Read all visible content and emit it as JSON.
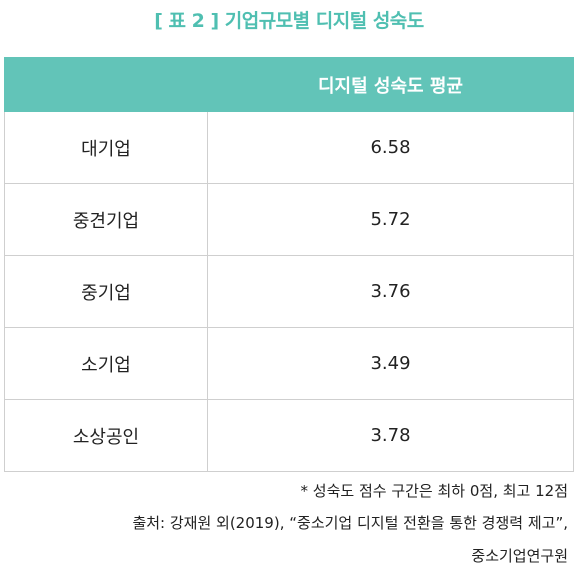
{
  "title": "[ 표 2 ] 기업규모별 디지털 성숙도",
  "table": {
    "header": [
      "디지털 성숙도 평균"
    ],
    "rows": [
      [
        "대기업",
        6.58
      ],
      [
        "중견기업",
        5.72
      ],
      [
        "중기업",
        3.76
      ],
      [
        "소기업",
        3.49
      ],
      [
        "소상공인",
        3.78
      ]
    ]
  },
  "notes": [
    "* 성숙도 점수 구간은 최하 0점, 최고 12점",
    "출처: 강재원 외(2019), “중소기업 디지털 전환을 통한 경쟁력 제고”,",
    "중소기업연구원"
  ]
}
